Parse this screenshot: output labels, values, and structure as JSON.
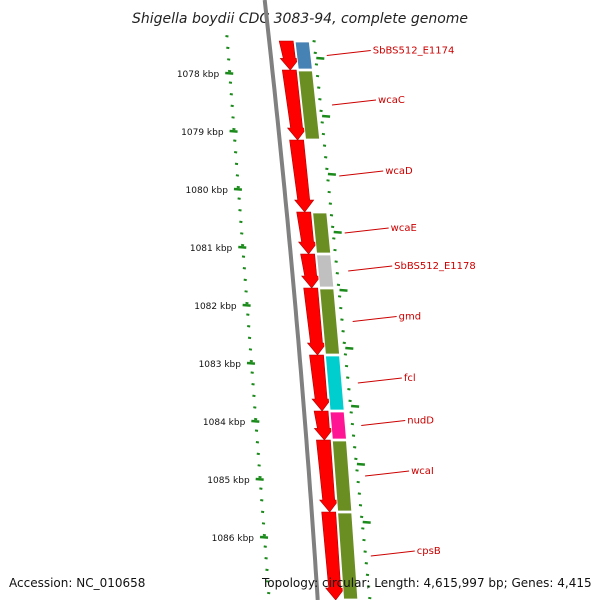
{
  "title": "Shigella boydii CDC 3083-94, complete genome",
  "footer": {
    "accession": "Accession: NC_010658",
    "topology": "Topology: circular; Length: 4,615,997 bp; Genes: 4,415"
  },
  "colors": {
    "backbone": "#808080",
    "tick": "#1a8a1a",
    "forward_gene": "#ff0000",
    "cog_olive": "#6b8e23",
    "cog_blue": "#4682b4",
    "cog_gray": "#c0c0c0",
    "cog_cyan": "#00cdcd",
    "cog_magenta": "#ff1493",
    "label": "#cc0000"
  },
  "kbp_labels": [
    "1078 kbp",
    "1079 kbp",
    "1080 kbp",
    "1081 kbp",
    "1082 kbp",
    "1083 kbp",
    "1084 kbp",
    "1085 kbp",
    "1086 kbp"
  ],
  "genes": [
    {
      "name": "SbBS512_E1174",
      "cog": "cog_blue"
    },
    {
      "name": "wcaC",
      "cog": "cog_olive"
    },
    {
      "name": "wcaD",
      "cog": "none"
    },
    {
      "name": "wcaE",
      "cog": "cog_olive"
    },
    {
      "name": "SbBS512_E1178",
      "cog": "cog_gray"
    },
    {
      "name": "gmd",
      "cog": "cog_olive"
    },
    {
      "name": "fcl",
      "cog": "cog_cyan"
    },
    {
      "name": "nudD",
      "cog": "cog_magenta"
    },
    {
      "name": "wcaI",
      "cog": "cog_olive"
    },
    {
      "name": "cpsB",
      "cog": "cog_olive"
    }
  ]
}
